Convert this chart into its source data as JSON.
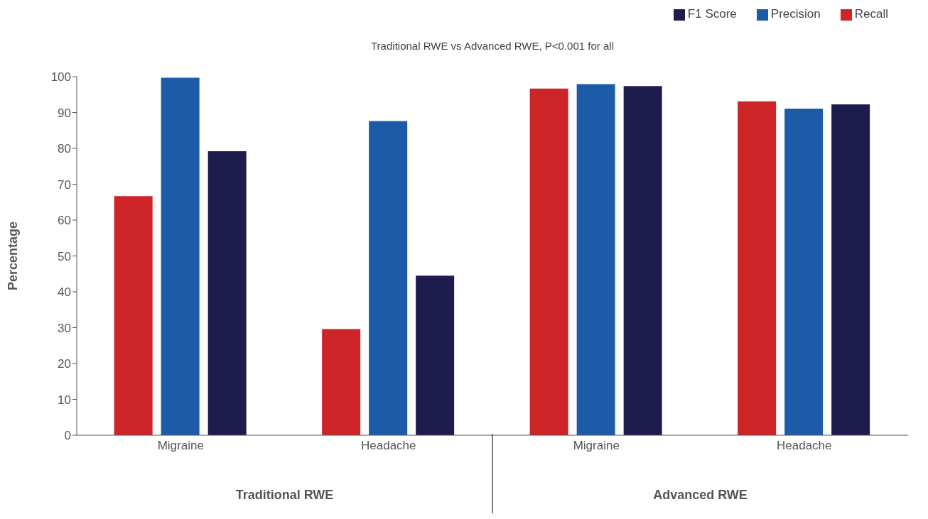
{
  "chart_data": {
    "type": "bar",
    "title": "Traditional RWE vs Advanced RWE, P<0.001 for all",
    "ylabel": "Percentage",
    "categories": [
      "Migraine",
      "Headache",
      "Migraine",
      "Headache"
    ],
    "series": [
      {
        "name": "Recall",
        "color": "#cc2427",
        "values": [
          66.7,
          29.6,
          96.7,
          93.1
        ]
      },
      {
        "name": "Precision",
        "color": "#1c5ba8",
        "values": [
          99.7,
          87.6,
          97.9,
          91.1
        ]
      },
      {
        "name": "F1 Score",
        "color": "#1e1c4c",
        "values": [
          79.2,
          44.5,
          97.4,
          92.3
        ]
      }
    ],
    "annotations": [
      "Traditional RWE",
      "Advanced RWE"
    ],
    "ylim": [
      0,
      100
    ],
    "yticks": [
      0,
      10,
      20,
      30,
      40,
      50,
      60,
      70,
      80,
      90,
      100
    ],
    "grid": false,
    "legend": "top right"
  }
}
